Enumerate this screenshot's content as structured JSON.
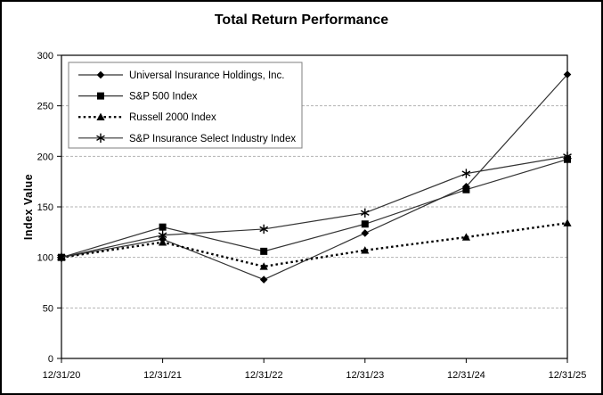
{
  "chart_data": {
    "type": "line",
    "title": "Total Return Performance",
    "xlabel": "",
    "ylabel": "Index Value",
    "ylim": [
      0,
      300
    ],
    "y_ticks": [
      0,
      50,
      100,
      150,
      200,
      250,
      300
    ],
    "grid": true,
    "legend_position": "top-left",
    "categories": [
      "12/31/20",
      "12/31/21",
      "12/31/22",
      "12/31/23",
      "12/31/24",
      "12/31/25"
    ],
    "series": [
      {
        "name": "Universal Insurance Holdings, Inc.",
        "marker": "diamond",
        "line": "solid",
        "values": [
          100,
          118,
          78,
          124,
          170,
          281
        ]
      },
      {
        "name": "S&P 500 Index",
        "marker": "square",
        "line": "solid",
        "values": [
          100,
          130,
          106,
          133,
          167,
          197
        ]
      },
      {
        "name": "Russell 2000 Index",
        "marker": "triangle",
        "line": "dotted",
        "values": [
          100,
          115,
          91,
          107,
          120,
          134
        ]
      },
      {
        "name": "S&P Insurance Select Industry Index",
        "marker": "asterisk",
        "line": "solid",
        "values": [
          100,
          122,
          128,
          144,
          183,
          200
        ]
      }
    ],
    "colors": {
      "line": "#333333",
      "dotted_line": "#000000",
      "marker": "#000000",
      "gridline": "#b3b3b3",
      "axis": "#000000",
      "legend_border": "#7f7f7f"
    }
  }
}
